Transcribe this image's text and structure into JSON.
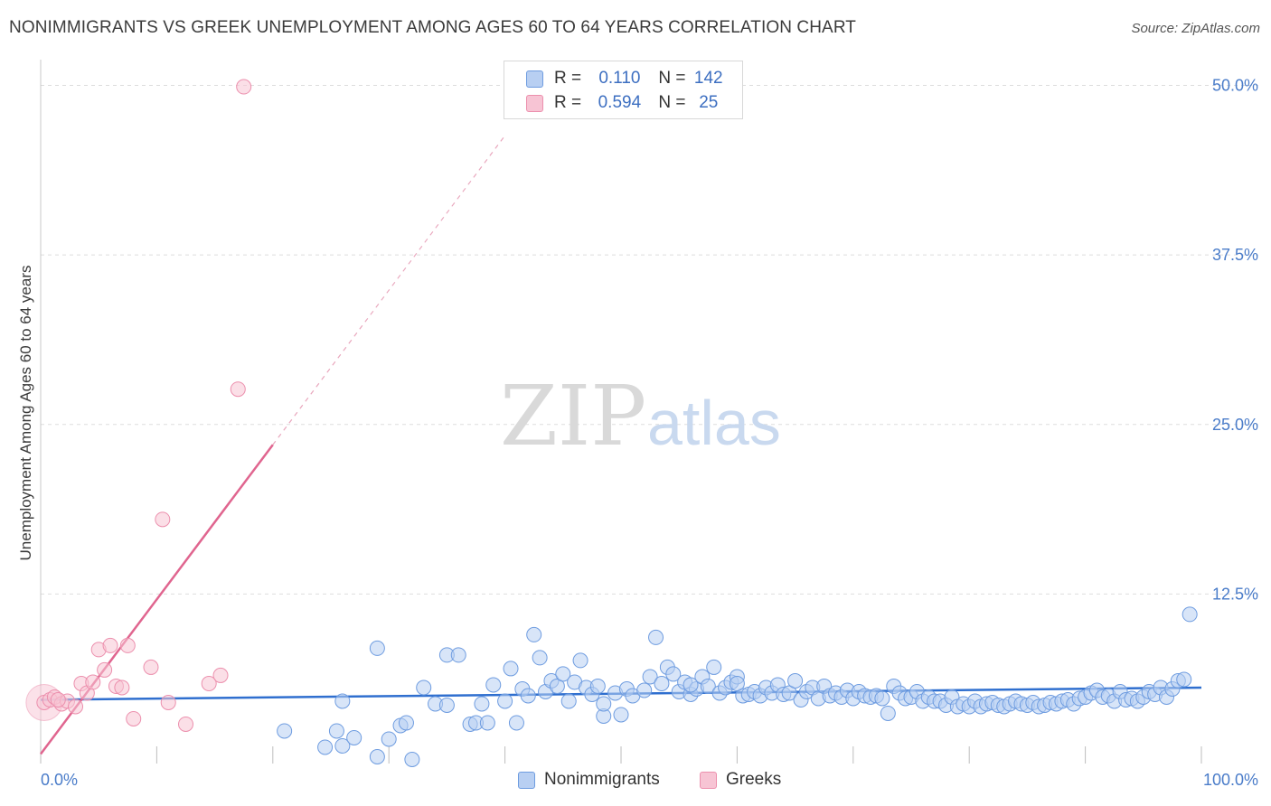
{
  "title": "NONIMMIGRANTS VS GREEK UNEMPLOYMENT AMONG AGES 60 TO 64 YEARS CORRELATION CHART",
  "source": "Source: ZipAtlas.com",
  "watermark": {
    "zip": "ZIP",
    "atlas": "atlas"
  },
  "colors": {
    "blue_fill": "#b8cff2",
    "blue_stroke": "#6e9ce0",
    "blue_line": "#2f6fcf",
    "pink_fill": "#f7c4d4",
    "pink_stroke": "#ec8fad",
    "pink_line": "#e0658f",
    "grid": "#dddddd",
    "tick_label": "#4a7cc9"
  },
  "legend": {
    "rows": [
      {
        "r_label": "R =",
        "r_value": "0.110",
        "n_label": "N =",
        "n_value": "142"
      },
      {
        "r_label": "R =",
        "r_value": "0.594",
        "n_label": "N =",
        "n_value": "25"
      }
    ]
  },
  "bottom_legend": {
    "series1": "Nonimmigrants",
    "series2": "Greeks"
  },
  "chart_data": {
    "type": "scatter",
    "title": "NONIMMIGRANTS VS GREEK UNEMPLOYMENT AMONG AGES 60 TO 64 YEARS CORRELATION CHART",
    "xlabel": "",
    "ylabel": "Unemployment Among Ages 60 to 64 years",
    "xlim": [
      0,
      100
    ],
    "ylim": [
      0,
      51.5
    ],
    "x_tick_labels": [
      "0.0%",
      "100.0%"
    ],
    "y_ticks": [
      12.5,
      25.0,
      37.5,
      50.0
    ],
    "y_tick_labels": [
      "12.5%",
      "25.0%",
      "37.5%",
      "50.0%"
    ],
    "grid": true,
    "series": [
      {
        "name": "Nonimmigrants",
        "r": 0.11,
        "n": 142,
        "trend": {
          "x0": 0,
          "y0": 4.7,
          "x1": 100,
          "y1": 5.6
        },
        "points": [
          [
            21.0,
            2.4
          ],
          [
            24.5,
            1.2
          ],
          [
            25.5,
            2.4
          ],
          [
            26.0,
            1.3
          ],
          [
            27.0,
            1.9
          ],
          [
            29.0,
            0.5
          ],
          [
            30.0,
            1.8
          ],
          [
            31.0,
            2.8
          ],
          [
            31.5,
            3.0
          ],
          [
            32.0,
            0.3
          ],
          [
            26.0,
            4.6
          ],
          [
            29.0,
            8.5
          ],
          [
            33.0,
            5.6
          ],
          [
            34.0,
            4.4
          ],
          [
            35.0,
            8.0
          ],
          [
            35.0,
            4.3
          ],
          [
            36.0,
            8.0
          ],
          [
            37.0,
            2.9
          ],
          [
            37.5,
            3.0
          ],
          [
            38.0,
            4.4
          ],
          [
            38.5,
            3.0
          ],
          [
            39.0,
            5.8
          ],
          [
            40.0,
            4.6
          ],
          [
            40.5,
            7.0
          ],
          [
            41.0,
            3.0
          ],
          [
            41.5,
            5.5
          ],
          [
            42.0,
            5.0
          ],
          [
            42.5,
            9.5
          ],
          [
            43.0,
            7.8
          ],
          [
            43.5,
            5.3
          ],
          [
            44.0,
            6.1
          ],
          [
            44.5,
            5.7
          ],
          [
            45.0,
            6.6
          ],
          [
            45.5,
            4.6
          ],
          [
            46.0,
            6.0
          ],
          [
            46.5,
            7.6
          ],
          [
            47.0,
            5.6
          ],
          [
            47.5,
            5.1
          ],
          [
            48.0,
            5.7
          ],
          [
            48.5,
            3.5
          ],
          [
            48.5,
            4.4
          ],
          [
            49.5,
            5.2
          ],
          [
            50.0,
            3.6
          ],
          [
            50.5,
            5.5
          ],
          [
            51.0,
            5.0
          ],
          [
            52.0,
            5.4
          ],
          [
            52.5,
            6.4
          ],
          [
            53.0,
            9.3
          ],
          [
            53.5,
            5.9
          ],
          [
            54.0,
            7.1
          ],
          [
            54.5,
            6.6
          ],
          [
            55.0,
            5.3
          ],
          [
            55.5,
            6.0
          ],
          [
            56.0,
            5.1
          ],
          [
            56.5,
            5.5
          ],
          [
            57.0,
            6.4
          ],
          [
            57.5,
            5.7
          ],
          [
            58.0,
            7.1
          ],
          [
            58.5,
            5.2
          ],
          [
            59.0,
            5.6
          ],
          [
            59.5,
            6.0
          ],
          [
            60.0,
            6.4
          ],
          [
            60.5,
            5.0
          ],
          [
            61.0,
            5.1
          ],
          [
            61.5,
            5.3
          ],
          [
            62.0,
            5.0
          ],
          [
            62.5,
            5.6
          ],
          [
            63.0,
            5.2
          ],
          [
            63.5,
            5.8
          ],
          [
            64.0,
            5.1
          ],
          [
            64.5,
            5.2
          ],
          [
            65.0,
            6.1
          ],
          [
            65.5,
            4.7
          ],
          [
            66.0,
            5.3
          ],
          [
            66.5,
            5.6
          ],
          [
            67.0,
            4.8
          ],
          [
            67.5,
            5.7
          ],
          [
            68.0,
            5.0
          ],
          [
            68.5,
            5.2
          ],
          [
            69.0,
            4.9
          ],
          [
            69.5,
            5.4
          ],
          [
            70.0,
            4.8
          ],
          [
            70.5,
            5.3
          ],
          [
            71.0,
            5.0
          ],
          [
            71.5,
            4.9
          ],
          [
            72.0,
            5.0
          ],
          [
            72.5,
            4.8
          ],
          [
            73.0,
            3.7
          ],
          [
            73.5,
            5.7
          ],
          [
            74.0,
            5.2
          ],
          [
            74.5,
            4.8
          ],
          [
            75.0,
            4.9
          ],
          [
            75.5,
            5.3
          ],
          [
            76.0,
            4.6
          ],
          [
            76.5,
            4.9
          ],
          [
            77.0,
            4.6
          ],
          [
            77.5,
            4.6
          ],
          [
            78.0,
            4.3
          ],
          [
            78.5,
            4.9
          ],
          [
            79.0,
            4.2
          ],
          [
            79.5,
            4.4
          ],
          [
            80.0,
            4.2
          ],
          [
            80.5,
            4.6
          ],
          [
            81.0,
            4.2
          ],
          [
            81.5,
            4.4
          ],
          [
            82.0,
            4.5
          ],
          [
            82.5,
            4.3
          ],
          [
            83.0,
            4.2
          ],
          [
            83.5,
            4.4
          ],
          [
            84.0,
            4.6
          ],
          [
            84.5,
            4.4
          ],
          [
            85.0,
            4.3
          ],
          [
            85.5,
            4.5
          ],
          [
            86.0,
            4.2
          ],
          [
            86.5,
            4.3
          ],
          [
            87.0,
            4.5
          ],
          [
            87.5,
            4.4
          ],
          [
            88.0,
            4.6
          ],
          [
            88.5,
            4.7
          ],
          [
            89.0,
            4.4
          ],
          [
            89.5,
            4.8
          ],
          [
            90.0,
            4.9
          ],
          [
            90.5,
            5.2
          ],
          [
            91.0,
            5.4
          ],
          [
            91.5,
            4.9
          ],
          [
            92.0,
            5.0
          ],
          [
            92.5,
            4.6
          ],
          [
            93.0,
            5.3
          ],
          [
            93.5,
            4.7
          ],
          [
            94.0,
            4.8
          ],
          [
            94.5,
            4.6
          ],
          [
            95.0,
            4.9
          ],
          [
            95.5,
            5.3
          ],
          [
            96.0,
            5.1
          ],
          [
            96.5,
            5.6
          ],
          [
            97.0,
            4.9
          ],
          [
            97.5,
            5.5
          ],
          [
            98.0,
            6.1
          ],
          [
            98.5,
            6.2
          ],
          [
            99.0,
            11.0
          ],
          [
            56.0,
            5.8
          ],
          [
            60.0,
            5.9
          ]
        ]
      },
      {
        "name": "Greeks",
        "r": 0.594,
        "n": 25,
        "trend": {
          "x0": 0,
          "y0": 0.7,
          "x1": 20,
          "y1": 23.5,
          "dash_x1": 40,
          "dash_y1": 46.3
        },
        "points": [
          [
            0.3,
            4.5
          ],
          [
            0.8,
            4.7
          ],
          [
            1.2,
            4.9
          ],
          [
            1.8,
            4.4
          ],
          [
            2.3,
            4.6
          ],
          [
            3.0,
            4.2
          ],
          [
            3.5,
            5.9
          ],
          [
            4.0,
            5.2
          ],
          [
            4.5,
            6.0
          ],
          [
            5.0,
            8.4
          ],
          [
            5.5,
            6.9
          ],
          [
            6.0,
            8.7
          ],
          [
            6.5,
            5.7
          ],
          [
            7.0,
            5.6
          ],
          [
            7.5,
            8.7
          ],
          [
            8.0,
            3.3
          ],
          [
            9.5,
            7.1
          ],
          [
            10.5,
            18.0
          ],
          [
            11.0,
            4.5
          ],
          [
            12.5,
            2.9
          ],
          [
            14.5,
            5.9
          ],
          [
            15.5,
            6.5
          ],
          [
            17.0,
            27.6
          ],
          [
            17.5,
            49.9
          ],
          [
            1.5,
            4.7
          ]
        ]
      }
    ]
  }
}
